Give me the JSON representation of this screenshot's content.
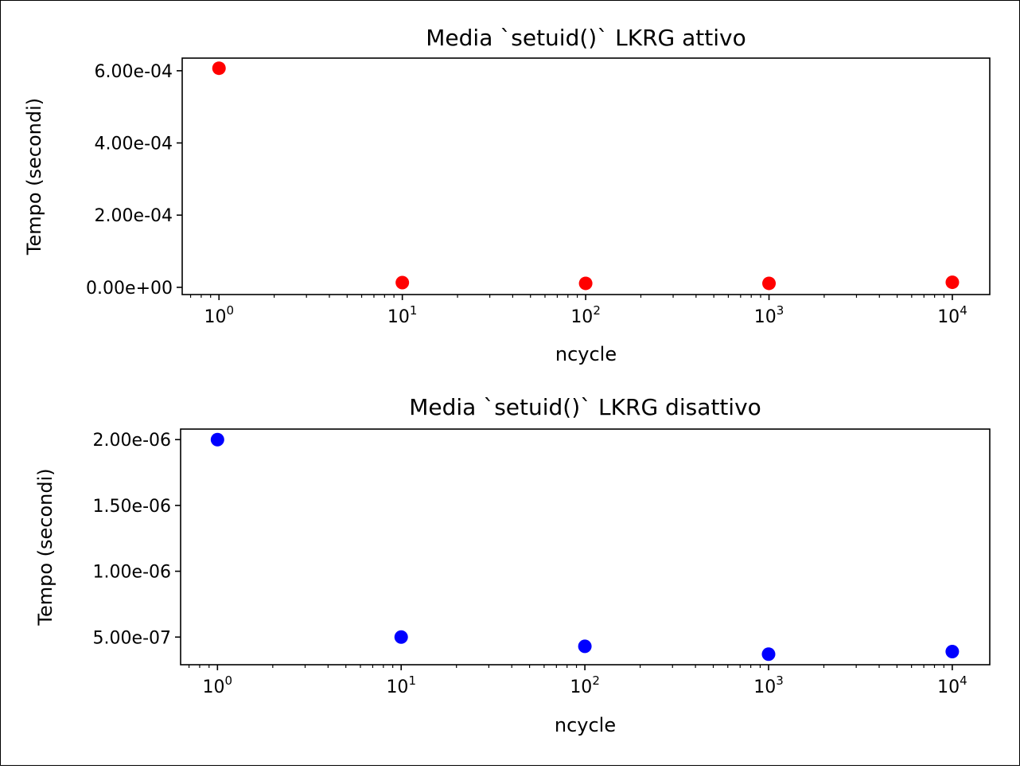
{
  "chart_data": [
    {
      "type": "scatter",
      "title": "Media `setuid()` LKRG attivo",
      "xlabel": "ncycle",
      "ylabel": "Tempo (secondi)",
      "xscale": "log",
      "xlim": [
        0.63,
        16000
      ],
      "ylim": [
        -2e-05,
        0.000635
      ],
      "x_ticks": [
        {
          "base": "10",
          "exp": "0",
          "value": 1
        },
        {
          "base": "10",
          "exp": "1",
          "value": 10
        },
        {
          "base": "10",
          "exp": "2",
          "value": 100
        },
        {
          "base": "10",
          "exp": "3",
          "value": 1000
        },
        {
          "base": "10",
          "exp": "4",
          "value": 10000
        }
      ],
      "y_ticks": [
        {
          "label": "0.00e+00",
          "value": 0
        },
        {
          "label": "2.00e-04",
          "value": 0.0002
        },
        {
          "label": "4.00e-04",
          "value": 0.0004
        },
        {
          "label": "6.00e-04",
          "value": 0.0006
        }
      ],
      "color": "#ff0000",
      "grid": false,
      "series": [
        {
          "x": [
            1,
            10,
            100,
            1000,
            10000
          ],
          "values": [
            0.000607,
            1.3e-05,
            1.1e-05,
            1.1e-05,
            1.4e-05
          ]
        }
      ]
    },
    {
      "type": "scatter",
      "title": "Media `setuid()` LKRG disattivo",
      "xlabel": "ncycle",
      "ylabel": "Tempo (secondi)",
      "xscale": "log",
      "xlim": [
        0.63,
        16000
      ],
      "ylim": [
        2.9e-07,
        2.08e-06
      ],
      "x_ticks": [
        {
          "base": "10",
          "exp": "0",
          "value": 1
        },
        {
          "base": "10",
          "exp": "1",
          "value": 10
        },
        {
          "base": "10",
          "exp": "2",
          "value": 100
        },
        {
          "base": "10",
          "exp": "3",
          "value": 1000
        },
        {
          "base": "10",
          "exp": "4",
          "value": 10000
        }
      ],
      "y_ticks": [
        {
          "label": "5.00e-07",
          "value": 5e-07
        },
        {
          "label": "1.00e-06",
          "value": 1e-06
        },
        {
          "label": "1.50e-06",
          "value": 1.5e-06
        },
        {
          "label": "2.00e-06",
          "value": 2e-06
        }
      ],
      "color": "#0000ff",
      "grid": false,
      "series": [
        {
          "x": [
            1,
            10,
            100,
            1000,
            10000
          ],
          "values": [
            2e-06,
            5e-07,
            4.3e-07,
            3.7e-07,
            3.9e-07
          ]
        }
      ]
    }
  ]
}
